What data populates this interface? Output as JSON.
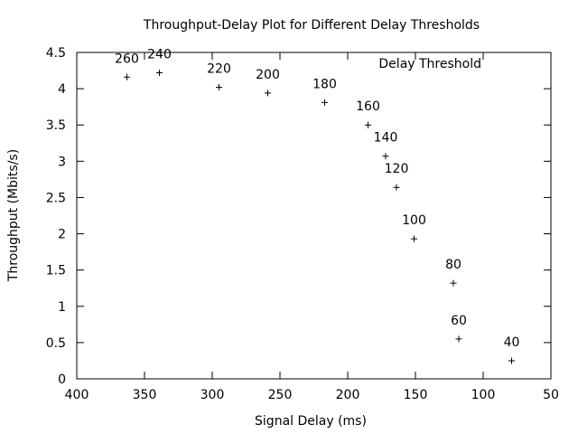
{
  "chart_data": {
    "type": "scatter",
    "title": "Throughput-Delay Plot for Different Delay Thresholds",
    "xlabel": "Signal Delay (ms)",
    "ylabel": "Throughput (Mbits/s)",
    "xlim": [
      400,
      50
    ],
    "ylim": [
      0,
      4.5
    ],
    "x_reversed": true,
    "x_ticks": [
      400,
      350,
      300,
      250,
      200,
      150,
      100,
      50
    ],
    "y_ticks": [
      0,
      0.5,
      1,
      1.5,
      2,
      2.5,
      3,
      3.5,
      4,
      4.5
    ],
    "legend": {
      "title": "Delay Threshold",
      "position": "top-right"
    },
    "marker": "plus",
    "grid": false,
    "points": [
      {
        "x": 363,
        "y": 4.16,
        "label": "260"
      },
      {
        "x": 339,
        "y": 4.22,
        "label": "240"
      },
      {
        "x": 295,
        "y": 4.02,
        "label": "220"
      },
      {
        "x": 259,
        "y": 3.94,
        "label": "200"
      },
      {
        "x": 217,
        "y": 3.81,
        "label": "180"
      },
      {
        "x": 185,
        "y": 3.5,
        "label": "160"
      },
      {
        "x": 172,
        "y": 3.07,
        "label": "140"
      },
      {
        "x": 164,
        "y": 2.64,
        "label": "120"
      },
      {
        "x": 151,
        "y": 1.93,
        "label": "100"
      },
      {
        "x": 122,
        "y": 1.32,
        "label": "80"
      },
      {
        "x": 118,
        "y": 0.55,
        "label": "60"
      },
      {
        "x": 79,
        "y": 0.25,
        "label": "40"
      }
    ]
  }
}
